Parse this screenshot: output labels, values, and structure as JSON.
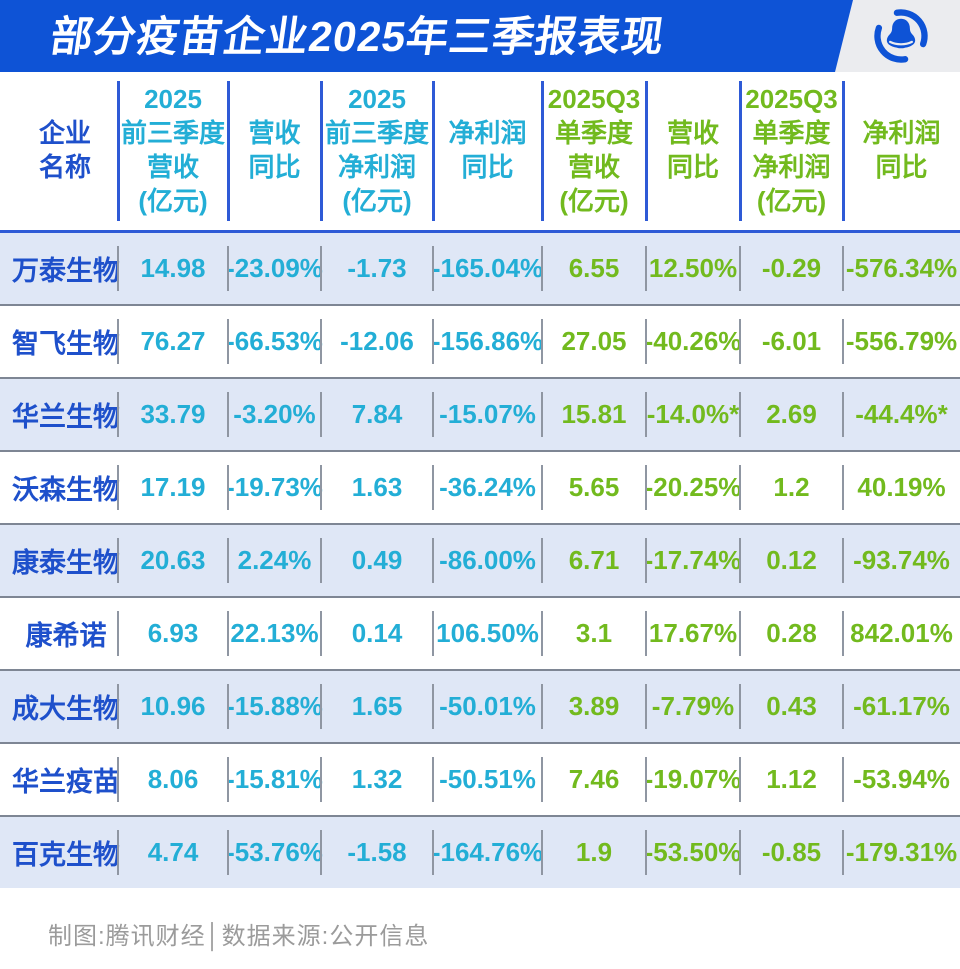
{
  "title": "部分疫苗企业2025年三季报表现",
  "logo": {
    "name": "tencent-qq-penguin",
    "color": "#0e53d6",
    "bg": "#ebecef"
  },
  "colors": {
    "bar_blue": "#0e53d6",
    "header_divider_blue": "#2e5ad6",
    "name_blue": "#1e50cb",
    "cyan": "#23aed6",
    "green": "#72ba1e",
    "row_band": "#dfe7f6",
    "row_separator": "#7e8694",
    "footer_gray": "#9b9b9b"
  },
  "table": {
    "columns": [
      {
        "label": "企业\n名称",
        "group": "name"
      },
      {
        "label": "2025\n前三季度\n营收\n(亿元)",
        "group": "cyan"
      },
      {
        "label": "营收\n同比",
        "group": "cyan"
      },
      {
        "label": "2025\n前三季度\n净利润\n(亿元)",
        "group": "cyan"
      },
      {
        "label": "净利润\n同比",
        "group": "cyan"
      },
      {
        "label": "2025Q3\n单季度\n营收\n(亿元)",
        "group": "green"
      },
      {
        "label": "营收\n同比",
        "group": "green"
      },
      {
        "label": "2025Q3\n单季度\n净利润\n(亿元)",
        "group": "green"
      },
      {
        "label": "净利润\n同比",
        "group": "green"
      }
    ],
    "rows": [
      {
        "name": "万泰生物",
        "values": [
          "14.98",
          "-23.09%",
          "-1.73",
          "-165.04%",
          "6.55",
          "12.50%",
          "-0.29",
          "-576.34%"
        ]
      },
      {
        "name": "智飞生物",
        "values": [
          "76.27",
          "-66.53%",
          "-12.06",
          "-156.86%",
          "27.05",
          "-40.26%",
          "-6.01",
          "-556.79%"
        ]
      },
      {
        "name": "华兰生物",
        "values": [
          "33.79",
          "-3.20%",
          "7.84",
          "-15.07%",
          "15.81",
          "-14.0%*",
          "2.69",
          "-44.4%*"
        ]
      },
      {
        "name": "沃森生物",
        "values": [
          "17.19",
          "-19.73%",
          "1.63",
          "-36.24%",
          "5.65",
          "-20.25%",
          "1.2",
          "40.19%"
        ]
      },
      {
        "name": "康泰生物",
        "values": [
          "20.63",
          "2.24%",
          "0.49",
          "-86.00%",
          "6.71",
          "-17.74%",
          "0.12",
          "-93.74%"
        ]
      },
      {
        "name": "康希诺",
        "values": [
          "6.93",
          "22.13%",
          "0.14",
          "106.50%",
          "3.1",
          "17.67%",
          "0.28",
          "842.01%"
        ]
      },
      {
        "name": "成大生物",
        "values": [
          "10.96",
          "-15.88%",
          "1.65",
          "-50.01%",
          "3.89",
          "-7.79%",
          "0.43",
          "-61.17%"
        ]
      },
      {
        "name": "华兰疫苗",
        "values": [
          "8.06",
          "-15.81%",
          "1.32",
          "-50.51%",
          "7.46",
          "-19.07%",
          "1.12",
          "-53.94%"
        ]
      },
      {
        "name": "百克生物",
        "values": [
          "4.74",
          "-53.76%",
          "-1.58",
          "-164.76%",
          "1.9",
          "-53.50%",
          "-0.85",
          "-179.31%"
        ]
      }
    ]
  },
  "footer": {
    "credit": "制图:腾讯财经│数据来源:公开信息"
  },
  "chart_data": {
    "type": "table",
    "title": "部分疫苗企业2025年三季报表现",
    "columns": [
      "企业名称",
      "2025前三季度营收(亿元)",
      "营收同比",
      "2025前三季度净利润(亿元)",
      "净利润同比",
      "2025Q3单季度营收(亿元)",
      "营收同比",
      "2025Q3单季度净利润(亿元)",
      "净利润同比"
    ],
    "rows": [
      [
        "万泰生物",
        14.98,
        "-23.09%",
        -1.73,
        "-165.04%",
        6.55,
        "12.50%",
        -0.29,
        "-576.34%"
      ],
      [
        "智飞生物",
        76.27,
        "-66.53%",
        -12.06,
        "-156.86%",
        27.05,
        "-40.26%",
        -6.01,
        "-556.79%"
      ],
      [
        "华兰生物",
        33.79,
        "-3.20%",
        7.84,
        "-15.07%",
        15.81,
        "-14.0%*",
        2.69,
        "-44.4%*"
      ],
      [
        "沃森生物",
        17.19,
        "-19.73%",
        1.63,
        "-36.24%",
        5.65,
        "-20.25%",
        1.2,
        "40.19%"
      ],
      [
        "康泰生物",
        20.63,
        "2.24%",
        0.49,
        "-86.00%",
        6.71,
        "-17.74%",
        0.12,
        "-93.74%"
      ],
      [
        "康希诺",
        6.93,
        "22.13%",
        0.14,
        "106.50%",
        3.1,
        "17.67%",
        0.28,
        "842.01%"
      ],
      [
        "成大生物",
        10.96,
        "-15.88%",
        1.65,
        "-50.01%",
        3.89,
        "-7.79%",
        0.43,
        "-61.17%"
      ],
      [
        "华兰疫苗",
        8.06,
        "-15.81%",
        1.32,
        "-50.51%",
        7.46,
        "-19.07%",
        1.12,
        "-53.94%"
      ],
      [
        "百克生物",
        4.74,
        "-53.76%",
        -1.58,
        "-164.76%",
        1.9,
        "-53.50%",
        -0.85,
        "-179.31%"
      ]
    ],
    "layout": {
      "alternating_row_bands": true,
      "band_color": "#dfe7f6",
      "source": "公开信息",
      "credit": "腾讯财经"
    }
  }
}
